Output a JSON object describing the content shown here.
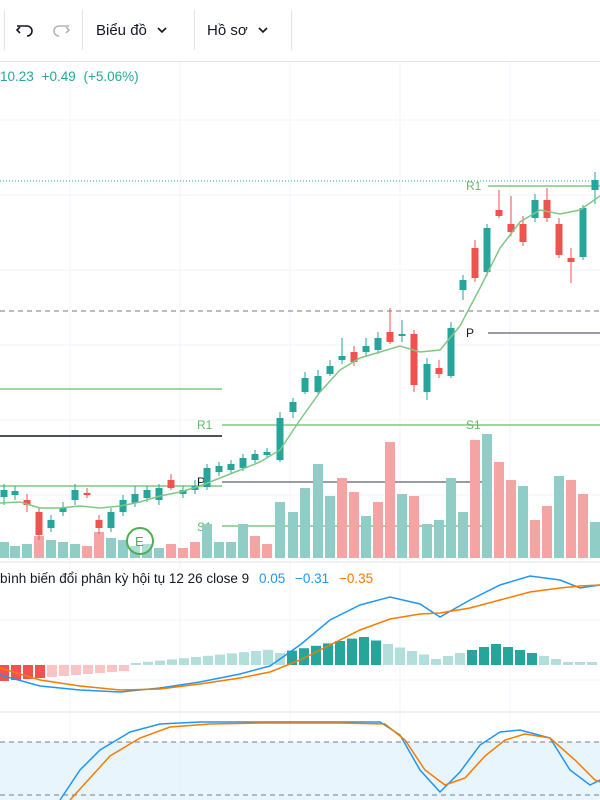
{
  "toolbar": {
    "chart_menu_label": "Biểu đồ",
    "profile_menu_label": "Hồ sơ"
  },
  "quote": {
    "price": "10.23",
    "change": "+0.49",
    "change_pct": "(+5.06%)"
  },
  "pivot_labels": {
    "r1_upper": "R1",
    "p_upper": "P",
    "s1_upper": "S1",
    "r1_mid": "R1",
    "p_mid": "P",
    "s1_mid": "S1"
  },
  "earnings_marker": "E",
  "macd": {
    "title": "bình biến đổi phân kỳ hội tụ 12 26 close 9",
    "histogram_value": "0.05",
    "macd_value": "−0.31",
    "signal_value": "−0.35"
  },
  "colors": {
    "up": "#26a69a",
    "down": "#ef5350",
    "vol_up": "#8fcdc6",
    "vol_down": "#f4a4a2",
    "ma": "#81c784",
    "pivot": "#81c784",
    "macd_line": "#2196f3",
    "signal_line": "#f57c00",
    "rsi_band": "#e3f2fd"
  },
  "icons": {
    "undo": "undo-icon",
    "redo": "redo-icon",
    "chevron": "chevron-down-icon"
  }
}
